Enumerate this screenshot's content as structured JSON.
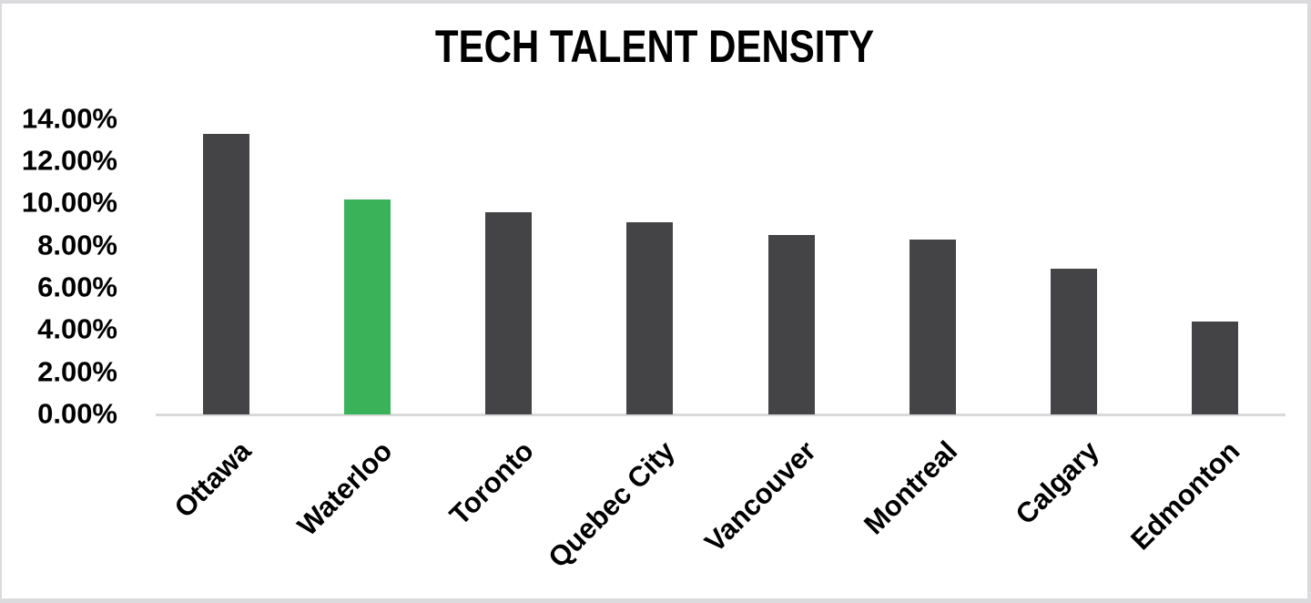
{
  "chart_data": {
    "type": "bar",
    "title": "TECH TALENT DENSITY",
    "categories": [
      "Ottawa",
      "Waterloo",
      "Toronto",
      "Quebec City",
      "Vancouver",
      "Montreal",
      "Calgary",
      "Edmonton"
    ],
    "values": [
      13.3,
      10.2,
      9.6,
      9.1,
      8.5,
      8.3,
      6.9,
      4.4
    ],
    "unit": "%",
    "xlabel": "",
    "ylabel": "",
    "ylim": [
      0,
      14
    ],
    "y_ticks": [
      "14.00%",
      "12.00%",
      "10.00%",
      "8.00%",
      "6.00%",
      "4.00%",
      "2.00%",
      "0.00%"
    ],
    "highlight_category": "Waterloo",
    "colors": {
      "bar": "#444447",
      "highlight": "#3ab25a",
      "axis_line": "#d9d9d9",
      "text": "#000000",
      "background": "#ffffff",
      "frame_border": "#dbdbdd"
    },
    "grid": false,
    "legend": false,
    "x_label_rotation_deg": -45
  }
}
